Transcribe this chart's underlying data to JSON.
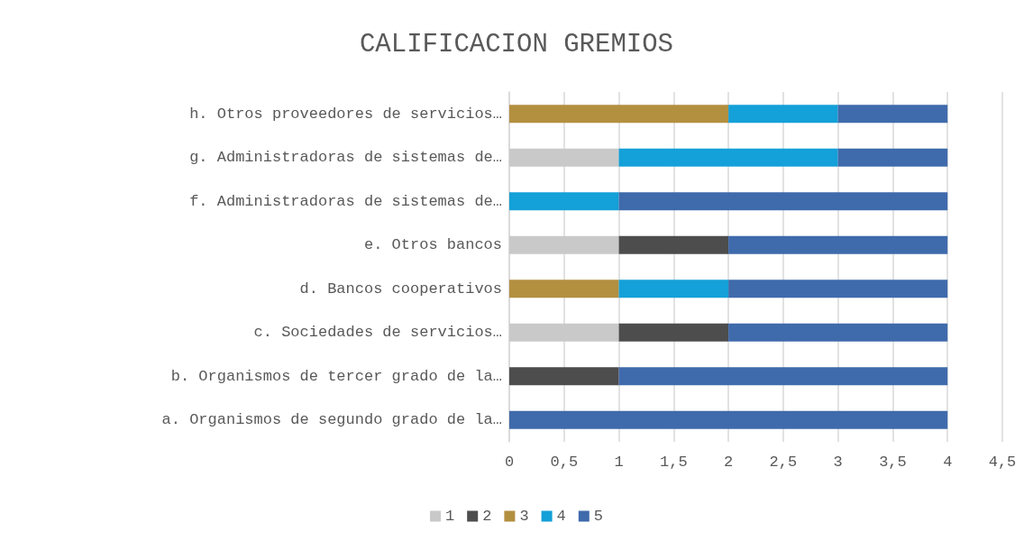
{
  "chart_data": {
    "type": "bar",
    "title": "CALIFICACION GREMIOS",
    "orientation": "horizontal",
    "stacked": true,
    "categories": [
      "h. Otros proveedores de servicios…",
      "g. Administradoras de sistemas de…",
      "f. Administradoras de sistemas de…",
      "e. Otros bancos",
      "d. Bancos cooperativos",
      "c. Sociedades de servicios…",
      "b. Organismos de tercer grado de la…",
      "a. Organismos de segundo grado de la…"
    ],
    "series": [
      {
        "name": "1",
        "color": "#c9c9c9",
        "values": [
          0,
          1,
          0,
          1,
          0,
          1,
          0,
          0
        ]
      },
      {
        "name": "2",
        "color": "#4d4d4d",
        "values": [
          0,
          0,
          0,
          1,
          0,
          1,
          1,
          0
        ]
      },
      {
        "name": "3",
        "color": "#b38f40",
        "values": [
          2,
          0,
          0,
          0,
          1,
          0,
          0,
          0
        ]
      },
      {
        "name": "4",
        "color": "#14a0d8",
        "values": [
          1,
          2,
          1,
          0,
          1,
          0,
          0,
          0
        ]
      },
      {
        "name": "5",
        "color": "#3f6aab",
        "values": [
          1,
          1,
          3,
          2,
          2,
          2,
          3,
          4
        ]
      }
    ],
    "xlim": [
      0,
      4.5
    ],
    "xticks": [
      0,
      {
        "value": 0.5,
        "label": "0,5"
      },
      1,
      {
        "value": 1.5,
        "label": "1,5"
      },
      2,
      {
        "value": 2.5,
        "label": "2,5"
      },
      3,
      {
        "value": 3.5,
        "label": "3,5"
      },
      4,
      {
        "value": 4.5,
        "label": "4,5"
      }
    ],
    "grid": "x",
    "legend": "bottom"
  }
}
